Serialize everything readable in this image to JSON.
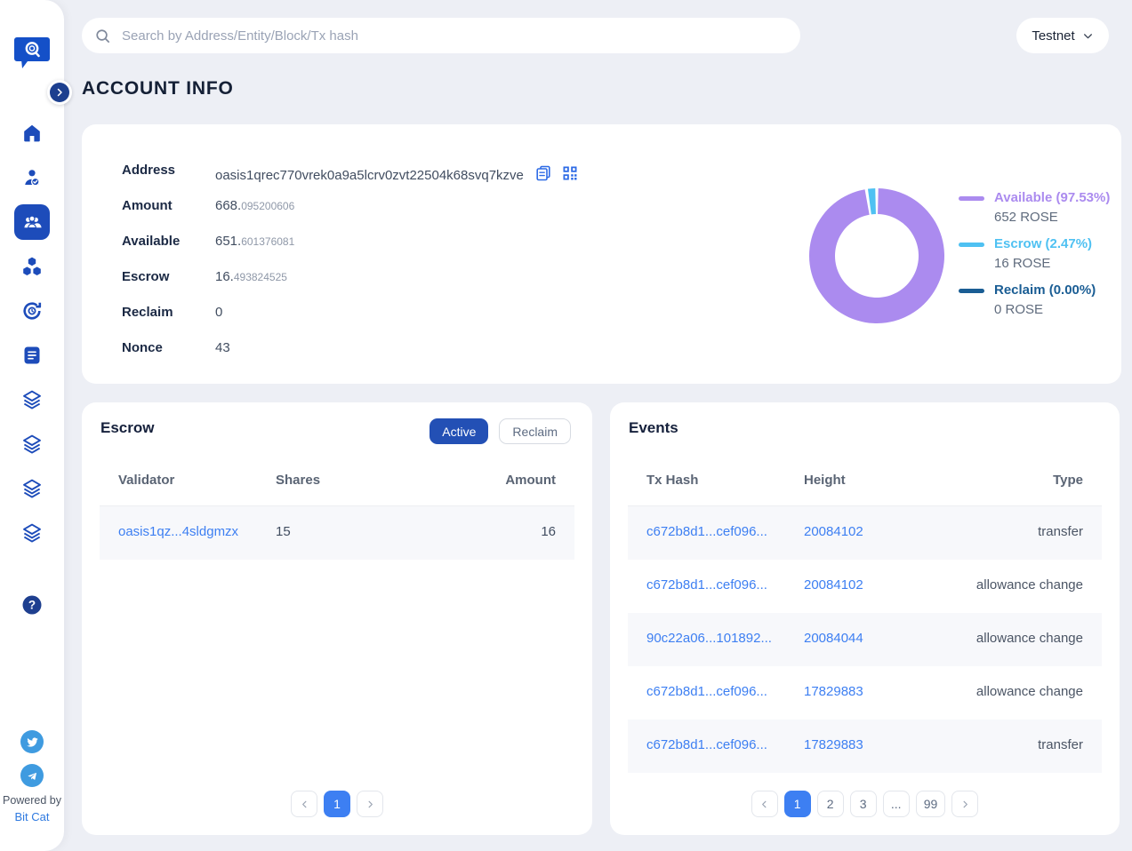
{
  "topbar": {
    "search_placeholder": "Search by Address/Entity/Block/Tx hash",
    "network": "Testnet"
  },
  "page": {
    "title": "ACCOUNT INFO"
  },
  "account": {
    "rows": [
      {
        "label": "Address",
        "value": "oasis1qrec770vrek0a9a5lcrv0zvt22504k68svq7kzve"
      },
      {
        "label": "Amount",
        "int": "668.",
        "dec": "095200606"
      },
      {
        "label": "Available",
        "int": "651.",
        "dec": "601376081"
      },
      {
        "label": "Escrow",
        "int": "16.",
        "dec": "493824525"
      },
      {
        "label": "Reclaim",
        "int": "0",
        "dec": ""
      },
      {
        "label": "Nonce",
        "int": "43",
        "dec": ""
      }
    ]
  },
  "chart_data": {
    "type": "pie",
    "donut": true,
    "legend_position": "right",
    "unit": "ROSE",
    "series": [
      {
        "name": "Available",
        "percent": 97.53,
        "value": 652,
        "label": "Available (97.53%)",
        "amount_text": "652 ROSE",
        "color": "#ab8bef"
      },
      {
        "name": "Escrow",
        "percent": 2.47,
        "value": 16,
        "label": "Escrow (2.47%)",
        "amount_text": "16 ROSE",
        "color": "#4fc1f2"
      },
      {
        "name": "Reclaim",
        "percent": 0.0,
        "value": 0,
        "label": "Reclaim (0.00%)",
        "amount_text": "0 ROSE",
        "color": "#1a5d94"
      }
    ]
  },
  "escrow_panel": {
    "title": "Escrow",
    "tabs": [
      {
        "label": "Active",
        "active": true
      },
      {
        "label": "Reclaim",
        "active": false
      }
    ],
    "columns": [
      "Validator",
      "Shares",
      "Amount"
    ],
    "rows": [
      {
        "validator": "oasis1qz...4sldgmzx",
        "shares": "15",
        "amount": "16"
      }
    ],
    "pagination": {
      "current": "1"
    }
  },
  "events_panel": {
    "title": "Events",
    "columns": [
      "Tx Hash",
      "Height",
      "Type"
    ],
    "rows": [
      {
        "tx_hash": "c672b8d1...cef096...",
        "height": "20084102",
        "type": "transfer"
      },
      {
        "tx_hash": "c672b8d1...cef096...",
        "height": "20084102",
        "type": "allowance change"
      },
      {
        "tx_hash": "90c22a06...101892...",
        "height": "20084044",
        "type": "allowance change"
      },
      {
        "tx_hash": "c672b8d1...cef096...",
        "height": "17829883",
        "type": "allowance change"
      },
      {
        "tx_hash": "c672b8d1...cef096...",
        "height": "17829883",
        "type": "transfer"
      }
    ],
    "pagination": {
      "pages": [
        "1",
        "2",
        "3",
        "...",
        "99"
      ],
      "current": "1"
    }
  },
  "sidebar": {
    "powered_by": "Powered by",
    "brand": "Bit Cat"
  },
  "colors": {
    "accent": "#1d4cba",
    "link": "#3d7ff2",
    "active_tab": "#2350b5",
    "available": "#ab8bef",
    "escrow": "#4fc1f2",
    "reclaim": "#1a5d94"
  }
}
